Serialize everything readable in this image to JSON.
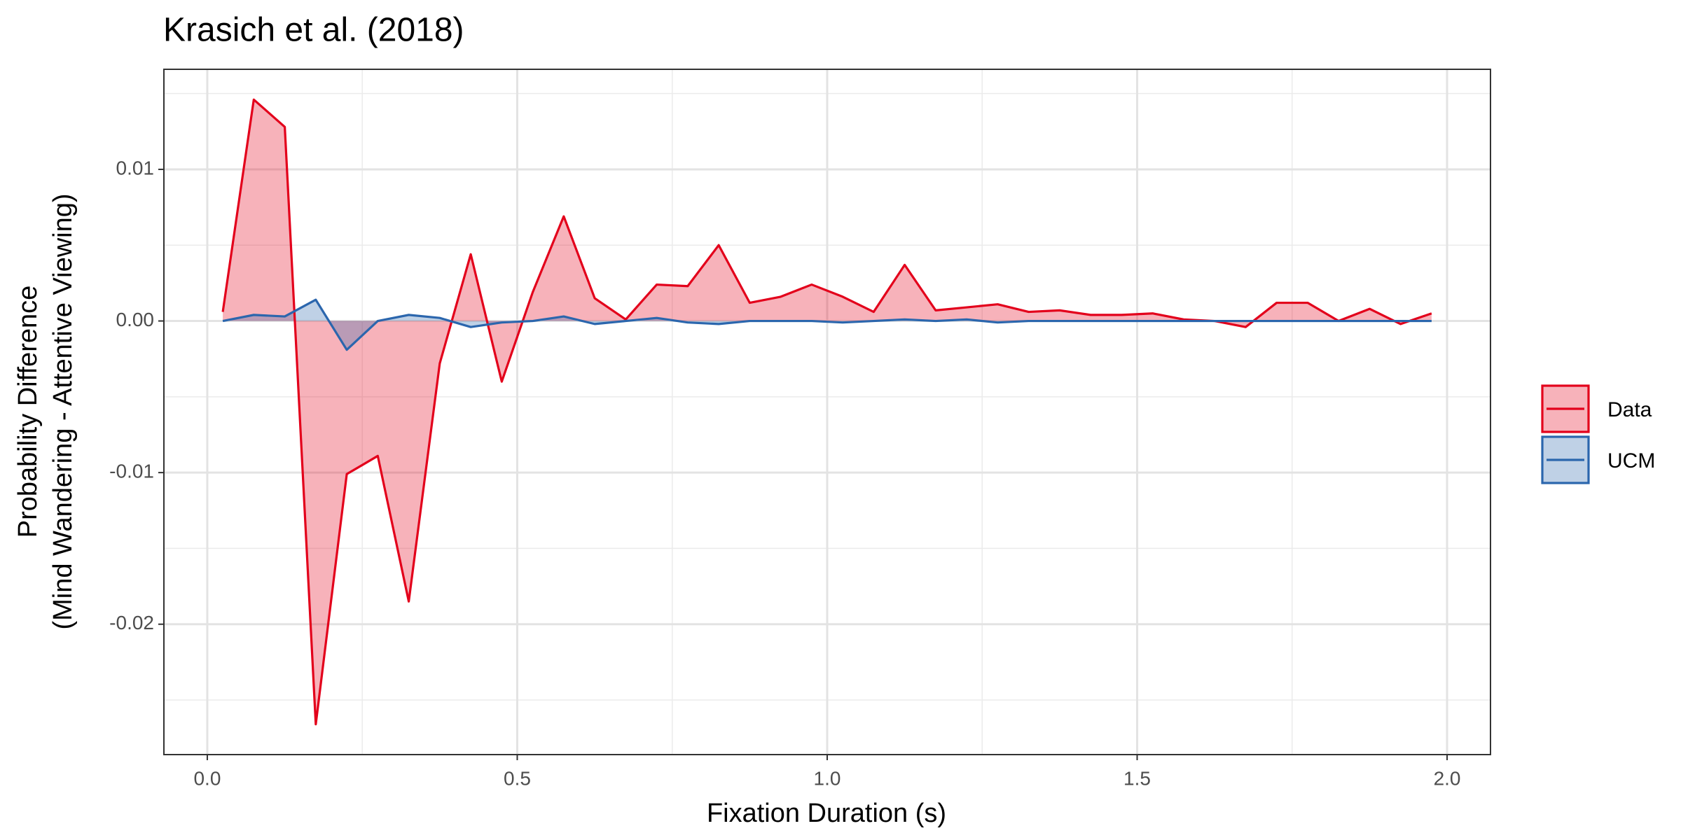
{
  "chart_data": {
    "type": "area-line",
    "title": "Krasich et al. (2018)",
    "x_label": "Fixation Duration (s)",
    "y_label": [
      "Probability Difference",
      "(Mind Wandering - Attentive Viewing)"
    ],
    "x": [
      0.025,
      0.075,
      0.125,
      0.175,
      0.225,
      0.275,
      0.325,
      0.375,
      0.425,
      0.475,
      0.525,
      0.575,
      0.625,
      0.675,
      0.725,
      0.775,
      0.825,
      0.875,
      0.925,
      0.975,
      1.025,
      1.075,
      1.125,
      1.175,
      1.225,
      1.275,
      1.325,
      1.375,
      1.425,
      1.475,
      1.525,
      1.575,
      1.625,
      1.675,
      1.725,
      1.775,
      1.825,
      1.875,
      1.925,
      1.975
    ],
    "series": [
      {
        "name": "Data",
        "color": "#e3001b",
        "values": [
          0.0006,
          0.0146,
          0.0128,
          -0.0266,
          -0.0101,
          -0.0089,
          -0.0185,
          -0.0028,
          0.0044,
          -0.004,
          0.0019,
          0.0069,
          0.0015,
          0.0001,
          0.0024,
          0.0023,
          0.005,
          0.0012,
          0.0016,
          0.0024,
          0.0016,
          0.0006,
          0.0037,
          0.0007,
          0.0009,
          0.0011,
          0.0006,
          0.0007,
          0.0004,
          0.0004,
          0.0005,
          0.0001,
          0,
          -0.0004,
          0.0012,
          0.0012,
          0,
          0.0008,
          -0.0002,
          0.0005
        ]
      },
      {
        "name": "UCM",
        "color": "#2b66ad",
        "values": [
          0,
          0.0004,
          0.0003,
          0.0014,
          -0.0019,
          0,
          0.0004,
          0.0002,
          -0.0004,
          -0.0001,
          0,
          0.0003,
          -0.0002,
          0,
          0.0002,
          -0.0001,
          -0.0002,
          0,
          0,
          0,
          -0.0001,
          0,
          0.0001,
          0,
          0.0001,
          -0.0001,
          0,
          0,
          0,
          0,
          0,
          0,
          0,
          0,
          0,
          0,
          0,
          0,
          0,
          0
        ]
      }
    ],
    "xlim": [
      -0.07,
      2.07
    ],
    "ylim": [
      -0.0286,
      0.0166
    ],
    "xticks": [
      {
        "value": 0,
        "label": "0.0"
      },
      0.5,
      {
        "value": 1,
        "label": "1.0"
      },
      1.5,
      {
        "value": 2,
        "label": "2.0"
      }
    ],
    "yticks": [
      -0.02,
      -0.01,
      {
        "value": 0,
        "label": "0.00"
      },
      0.01
    ],
    "xminor": [
      0.25,
      0.75,
      1.25,
      1.75
    ],
    "yminor": [
      -0.025,
      -0.015,
      -0.005,
      0.005,
      0.015
    ],
    "grid": true,
    "fill_opacity": 0.3,
    "legend": "right"
  }
}
